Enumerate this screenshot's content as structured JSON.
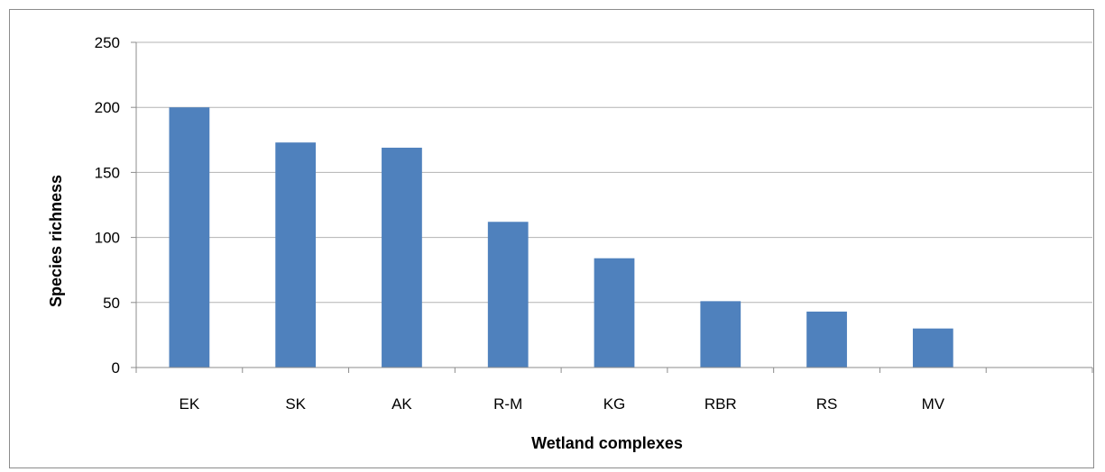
{
  "chart_data": {
    "type": "bar",
    "title": "",
    "xlabel": "Wetland complexes",
    "ylabel": "Species richness",
    "categories": [
      "EK",
      "SK",
      "AK",
      "R-M",
      "KG",
      "RBR",
      "RS",
      "MV",
      ""
    ],
    "values": [
      200,
      173,
      169,
      112,
      84,
      51,
      43,
      30,
      null
    ],
    "ylim": [
      0,
      250
    ],
    "yticks": [
      0,
      50,
      100,
      150,
      200,
      250
    ],
    "grid": true,
    "legend": "none",
    "bar_color": "#4f81bd",
    "grid_color": "#b3b3b3"
  }
}
